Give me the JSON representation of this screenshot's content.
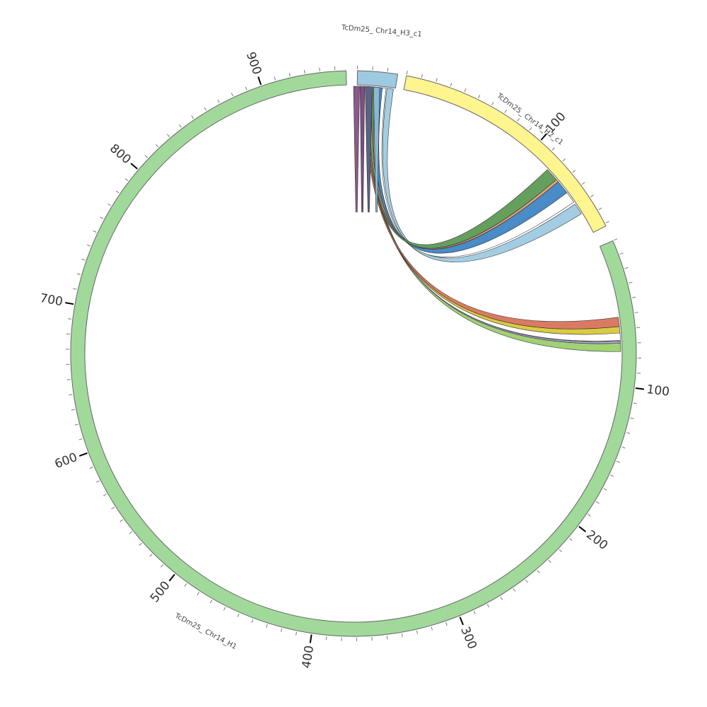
{
  "segments": [
    {
      "label": "TcDm25_ Chr14_H1",
      "ticks": [
        100,
        200,
        300,
        400,
        500,
        600,
        700,
        800,
        900
      ]
    },
    {
      "label": "TcDm25_ Chr14_H2_c1",
      "ticks": [
        100
      ]
    },
    {
      "label": "TcDm25_ Chr14_H3_c1",
      "ticks": []
    }
  ]
}
